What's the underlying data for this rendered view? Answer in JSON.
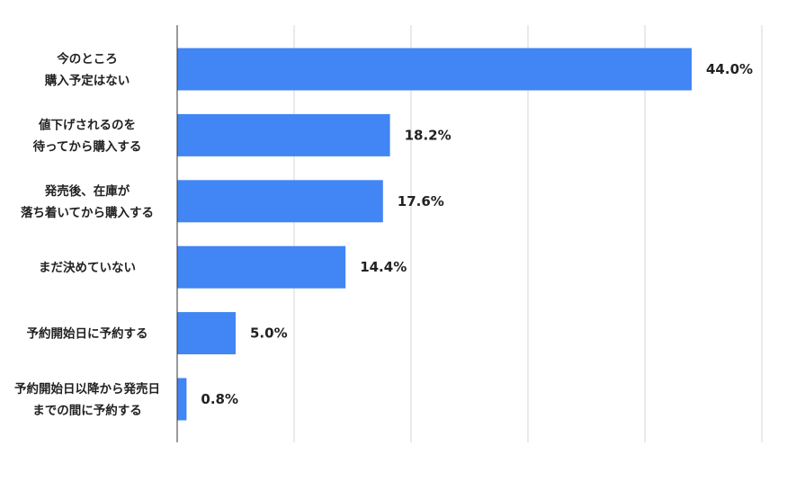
{
  "chart_data": {
    "type": "bar",
    "orientation": "horizontal",
    "categories": [
      [
        "今のところ",
        "購入予定はない"
      ],
      [
        "値下げされるのを",
        "待ってから購入する"
      ],
      [
        "発売後、在庫が",
        "落ち着いてから購入する"
      ],
      [
        "まだ決めていない"
      ],
      [
        "予約開始日に予約する"
      ],
      [
        "予約開始日以降から発売日",
        "までの間に予約する"
      ]
    ],
    "values": [
      44.0,
      18.2,
      17.6,
      14.4,
      5.0,
      0.8
    ],
    "data_labels": [
      "44.0%",
      "18.2%",
      "17.6%",
      "14.4%",
      "5.0%",
      "0.8%"
    ],
    "xlim": [
      0,
      50
    ],
    "grid": true,
    "bar_color": "#4285f4",
    "title": "",
    "xlabel": "",
    "ylabel": ""
  }
}
